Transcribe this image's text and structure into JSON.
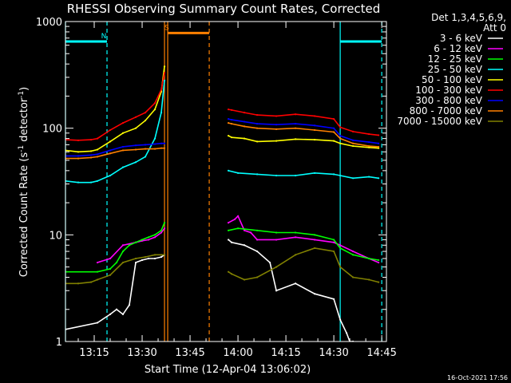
{
  "chart_data": {
    "type": "line",
    "title": "RHESSI Observing Summary Count Rates, Corrected",
    "xlabel": "Start Time (12-Apr-04 13:06:02)",
    "ylabel_main": "Corrected Count Rate (s",
    "ylabel_sup1": "-1",
    "ylabel_mid": " detector",
    "ylabel_sup2": "-1",
    "ylabel_end": ")",
    "yscale": "log",
    "xlim": [
      "13:06:02",
      "14:46:30"
    ],
    "ylim": [
      1,
      1000
    ],
    "x_ticks": [
      "13:15",
      "13:30",
      "13:45",
      "14:00",
      "14:15",
      "14:30",
      "14:45"
    ],
    "x_tick_minutes": [
      9,
      24,
      39,
      54,
      69,
      84,
      99
    ],
    "y_ticks": [
      "1",
      "10",
      "100",
      "1000"
    ],
    "y_tick_values": [
      1,
      10,
      100,
      1000
    ],
    "legend": {
      "position": "right",
      "header1": "Det 1,3,4,5,6,9,",
      "header2": "Att 0"
    },
    "series": [
      {
        "name": "3 - 6 keV",
        "color": "#ffffff",
        "x": [
          0,
          10,
          14,
          16,
          18,
          20,
          22,
          24,
          26,
          28,
          30,
          31,
          51,
          52,
          56,
          60,
          64,
          66,
          72,
          78,
          84,
          86,
          88,
          89,
          90
        ],
        "y": [
          1.3,
          1.5,
          1.8,
          2.0,
          1.8,
          2.2,
          5.5,
          5.8,
          6.0,
          6.0,
          6.2,
          6.5,
          9.0,
          8.5,
          8.0,
          7.0,
          5.5,
          3.0,
          3.5,
          2.8,
          2.5,
          1.6,
          1.2,
          1.0,
          1.0
        ]
      },
      {
        "name": "6 - 12 keV",
        "color": "#ff00ff",
        "x": [
          10,
          14,
          18,
          22,
          24,
          26,
          28,
          30,
          31,
          51,
          53,
          54,
          56,
          58,
          60,
          66,
          72,
          78,
          84,
          86,
          90,
          95,
          98
        ],
        "y": [
          5.5,
          6.0,
          8.0,
          8.5,
          8.8,
          9.0,
          9.5,
          10.5,
          11.5,
          13.0,
          14.0,
          15.0,
          11.0,
          10.5,
          9.0,
          9.0,
          9.5,
          9.0,
          8.5,
          8.0,
          7.0,
          6.0,
          5.5
        ]
      },
      {
        "name": "12 - 25 keV",
        "color": "#00ff00",
        "x": [
          0,
          10,
          14,
          16,
          18,
          20,
          22,
          24,
          26,
          28,
          30,
          31,
          51,
          54,
          60,
          66,
          72,
          78,
          84,
          86,
          90,
          95,
          98
        ],
        "y": [
          4.5,
          4.5,
          4.8,
          5.5,
          7.0,
          8.0,
          8.5,
          9.0,
          9.5,
          10.0,
          11.0,
          13.0,
          11.0,
          11.5,
          11.0,
          10.5,
          10.5,
          10.0,
          9.0,
          7.5,
          6.5,
          6.0,
          5.8
        ]
      },
      {
        "name": "25 - 50 keV",
        "color": "#00ffff",
        "x": [
          0,
          4,
          8,
          10,
          14,
          18,
          22,
          25,
          28,
          30,
          31,
          51,
          54,
          60,
          66,
          72,
          78,
          84,
          86,
          90,
          95,
          98
        ],
        "y": [
          32,
          31,
          31,
          32,
          36,
          43,
          48,
          54,
          80,
          140,
          280,
          40,
          38,
          37,
          36,
          36,
          38,
          37,
          36,
          34,
          35,
          34
        ]
      },
      {
        "name": "50 - 100 keV",
        "color": "#ffff00",
        "x": [
          0,
          4,
          8,
          10,
          14,
          18,
          22,
          25,
          28,
          30,
          31,
          51,
          52,
          56,
          60,
          66,
          72,
          78,
          84,
          86,
          90,
          95,
          98
        ],
        "y": [
          62,
          60,
          61,
          63,
          75,
          90,
          100,
          118,
          150,
          220,
          380,
          85,
          82,
          80,
          75,
          76,
          79,
          78,
          76,
          72,
          68,
          66,
          65
        ]
      },
      {
        "name": "100 - 300 keV",
        "color": "#ff0000",
        "x": [
          0,
          4,
          8,
          10,
          14,
          18,
          22,
          25,
          28,
          30,
          31,
          51,
          52,
          56,
          60,
          66,
          72,
          78,
          84,
          86,
          90,
          95,
          98
        ],
        "y": [
          78,
          77,
          78,
          80,
          96,
          112,
          127,
          140,
          172,
          230,
          330,
          150,
          148,
          140,
          133,
          130,
          135,
          130,
          122,
          102,
          93,
          88,
          86
        ]
      },
      {
        "name": "300 - 800 keV",
        "color": "#0000ff",
        "x": [
          0,
          4,
          8,
          10,
          14,
          18,
          22,
          25,
          28,
          30,
          31,
          51,
          52,
          56,
          60,
          66,
          72,
          78,
          84,
          86,
          90,
          95,
          98
        ],
        "y": [
          55,
          55,
          56,
          57,
          62,
          67,
          69,
          70,
          71,
          72,
          72,
          122,
          120,
          115,
          110,
          108,
          110,
          106,
          100,
          85,
          77,
          74,
          72
        ]
      },
      {
        "name": "800 - 7000 keV",
        "color": "#ff8000",
        "x": [
          0,
          4,
          8,
          10,
          14,
          18,
          22,
          25,
          28,
          30,
          31,
          51,
          52,
          56,
          60,
          66,
          72,
          78,
          84,
          86,
          90,
          95,
          98
        ],
        "y": [
          52,
          52,
          53,
          54,
          58,
          62,
          63,
          64,
          64,
          65,
          65,
          112,
          110,
          104,
          100,
          98,
          100,
          96,
          92,
          80,
          72,
          68,
          67
        ]
      },
      {
        "name": "7000 - 15000 keV",
        "color": "#808000",
        "x": [
          0,
          4,
          8,
          10,
          14,
          18,
          22,
          25,
          28,
          30,
          31,
          51,
          52,
          56,
          60,
          66,
          72,
          78,
          84,
          86,
          90,
          95,
          98
        ],
        "y": [
          3.5,
          3.5,
          3.6,
          3.8,
          4.2,
          5.5,
          6.0,
          6.2,
          6.5,
          6.5,
          6.5,
          4.5,
          4.3,
          3.8,
          4.0,
          5.0,
          6.5,
          7.5,
          7.0,
          5.0,
          4.0,
          3.8,
          3.6
        ]
      }
    ],
    "annotations": [
      {
        "label": "N",
        "color": "#00ffff",
        "type": "night",
        "x_start": 0,
        "x_end": 13,
        "y": 650
      },
      {
        "label": "S",
        "color": "#ff8000",
        "type": "saa",
        "x_start": 32,
        "x_end": 45,
        "y": 780
      },
      {
        "label": "",
        "color": "#00ffff",
        "type": "night",
        "x_start": 86,
        "x_end": 99,
        "y": 650
      }
    ],
    "vlines": [
      {
        "x": 0,
        "color": "#00ffff",
        "style": "solid"
      },
      {
        "x": 13,
        "color": "#00ffff",
        "style": "dashed"
      },
      {
        "x": 31,
        "color": "#ff8000",
        "style": "solid"
      },
      {
        "x": 32,
        "color": "#ff8000",
        "style": "solid"
      },
      {
        "x": 45,
        "color": "#ff8000",
        "style": "dashed"
      },
      {
        "x": 86,
        "color": "#00ffff",
        "style": "solid"
      },
      {
        "x": 99,
        "color": "#00ffff",
        "style": "dashed"
      }
    ],
    "gaps": [
      [
        31.2,
        50.8
      ]
    ]
  },
  "footer_timestamp": "16-Oct-2021 17:56"
}
